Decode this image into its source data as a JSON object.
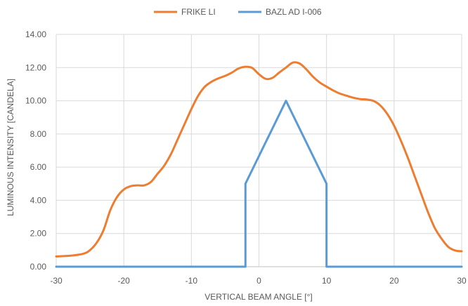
{
  "chart_data": {
    "type": "line",
    "xlabel": "VERTICAL BEAM ANGLE [°]",
    "ylabel": "LUMINOUS INTENSITY [CANDELA]",
    "xlim": [
      -30,
      30
    ],
    "ylim": [
      0,
      14
    ],
    "x_ticks": [
      "-30",
      "-20",
      "-10",
      "0",
      "10",
      "20",
      "30"
    ],
    "y_ticks": [
      "0.00",
      "2.00",
      "4.00",
      "6.00",
      "8.00",
      "10.00",
      "12.00",
      "14.00"
    ],
    "grid": true,
    "legend_position": "top",
    "series": [
      {
        "name": "FRIKE LI",
        "color": "#ED7D31",
        "points": [
          [
            -30,
            0.62
          ],
          [
            -28,
            0.66
          ],
          [
            -26,
            0.78
          ],
          [
            -25,
            1.0
          ],
          [
            -24,
            1.45
          ],
          [
            -23,
            2.2
          ],
          [
            -22,
            3.4
          ],
          [
            -21,
            4.2
          ],
          [
            -20,
            4.65
          ],
          [
            -19,
            4.85
          ],
          [
            -18,
            4.9
          ],
          [
            -17,
            4.9
          ],
          [
            -16,
            5.1
          ],
          [
            -15,
            5.6
          ],
          [
            -14,
            6.1
          ],
          [
            -13,
            6.8
          ],
          [
            -12,
            7.7
          ],
          [
            -11,
            8.6
          ],
          [
            -10,
            9.5
          ],
          [
            -9,
            10.3
          ],
          [
            -8,
            10.85
          ],
          [
            -7,
            11.15
          ],
          [
            -6,
            11.35
          ],
          [
            -5,
            11.5
          ],
          [
            -4,
            11.7
          ],
          [
            -3,
            11.95
          ],
          [
            -2,
            12.05
          ],
          [
            -1,
            11.98
          ],
          [
            0,
            11.6
          ],
          [
            1,
            11.32
          ],
          [
            2,
            11.38
          ],
          [
            3,
            11.7
          ],
          [
            4,
            12.0
          ],
          [
            5,
            12.3
          ],
          [
            6,
            12.25
          ],
          [
            7,
            11.9
          ],
          [
            8,
            11.45
          ],
          [
            9,
            11.1
          ],
          [
            10,
            10.85
          ],
          [
            11,
            10.62
          ],
          [
            12,
            10.43
          ],
          [
            13,
            10.3
          ],
          [
            14,
            10.18
          ],
          [
            15,
            10.1
          ],
          [
            16,
            10.07
          ],
          [
            17,
            9.98
          ],
          [
            18,
            9.7
          ],
          [
            19,
            9.2
          ],
          [
            20,
            8.5
          ],
          [
            21,
            7.6
          ],
          [
            22,
            6.6
          ],
          [
            23,
            5.5
          ],
          [
            24,
            4.4
          ],
          [
            25,
            3.3
          ],
          [
            26,
            2.35
          ],
          [
            27,
            1.7
          ],
          [
            28,
            1.2
          ],
          [
            29,
            0.98
          ],
          [
            30,
            0.93
          ]
        ]
      },
      {
        "name": "BAZL AD I-006",
        "color": "#5B9BD5",
        "points": [
          [
            -30,
            0
          ],
          [
            -2,
            0
          ],
          [
            -2,
            5
          ],
          [
            4,
            10
          ],
          [
            10,
            5
          ],
          [
            10,
            0
          ],
          [
            30,
            0
          ]
        ]
      }
    ]
  }
}
